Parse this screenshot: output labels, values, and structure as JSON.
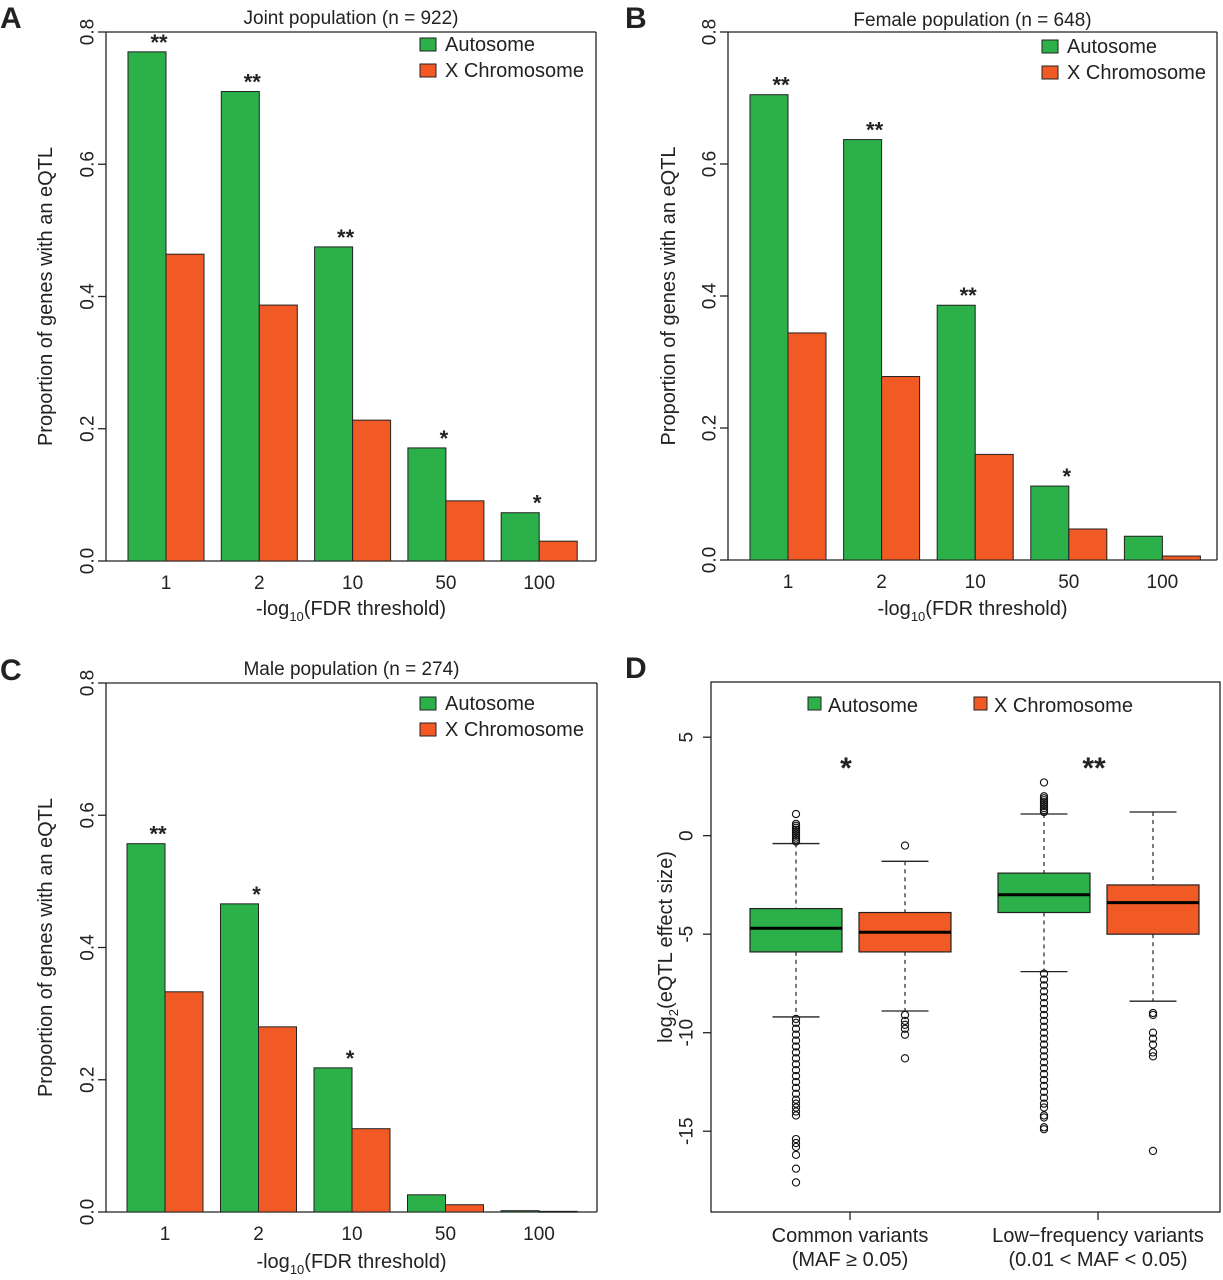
{
  "colors": {
    "autosome": "#2bb04a",
    "x_chromosome": "#f15a24",
    "outline": "#222222",
    "axis": "#222222"
  },
  "chart_data": [
    {
      "panel": "A",
      "type": "bar",
      "title": "Joint population (n = 922)",
      "xlabel": "-log10(FDR threshold)",
      "xlabel_main": "-log",
      "xlabel_sub": "10",
      "xlabel_rest": "(FDR threshold)",
      "ylabel": "Proportion of genes with an eQTL",
      "ylim": [
        0,
        0.8
      ],
      "yticks": [
        "0.0",
        "0.2",
        "0.4",
        "0.6",
        "0.8"
      ],
      "categories": [
        "1",
        "2",
        "10",
        "50",
        "100"
      ],
      "legend": [
        "Autosome",
        "X Chromosome"
      ],
      "legend_position": "top-right",
      "series": [
        {
          "name": "Autosome",
          "values": [
            0.77,
            0.71,
            0.475,
            0.171,
            0.073
          ]
        },
        {
          "name": "X Chromosome",
          "values": [
            0.464,
            0.387,
            0.213,
            0.091,
            0.03
          ]
        }
      ],
      "significance": [
        "**",
        "**",
        "**",
        "*",
        "*"
      ]
    },
    {
      "panel": "B",
      "type": "bar",
      "title": "Female population (n = 648)",
      "xlabel": "-log10(FDR threshold)",
      "xlabel_main": "-log",
      "xlabel_sub": "10",
      "xlabel_rest": "(FDR threshold)",
      "ylabel": "Proportion of genes with an eQTL",
      "ylim": [
        0,
        0.8
      ],
      "yticks": [
        "0.0",
        "0.2",
        "0.4",
        "0.6",
        "0.8"
      ],
      "categories": [
        "1",
        "2",
        "10",
        "50",
        "100"
      ],
      "legend": [
        "Autosome",
        "X Chromosome"
      ],
      "legend_position": "top-right",
      "series": [
        {
          "name": "Autosome",
          "values": [
            0.705,
            0.637,
            0.386,
            0.112,
            0.036
          ]
        },
        {
          "name": "X Chromosome",
          "values": [
            0.344,
            0.278,
            0.16,
            0.047,
            0.006
          ]
        }
      ],
      "significance": [
        "**",
        "**",
        "**",
        "*",
        ""
      ]
    },
    {
      "panel": "C",
      "type": "bar",
      "title": "Male population (n = 274)",
      "xlabel": "-log10(FDR threshold)",
      "xlabel_main": "-log",
      "xlabel_sub": "10",
      "xlabel_rest": "(FDR threshold)",
      "ylabel": "Proportion of genes with an eQTL",
      "ylim": [
        0,
        0.8
      ],
      "yticks": [
        "0.0",
        "0.2",
        "0.4",
        "0.6",
        "0.8"
      ],
      "categories": [
        "1",
        "2",
        "10",
        "50",
        "100"
      ],
      "legend": [
        "Autosome",
        "X Chromosome"
      ],
      "legend_position": "top-right",
      "series": [
        {
          "name": "Autosome",
          "values": [
            0.557,
            0.466,
            0.218,
            0.026,
            0.002
          ]
        },
        {
          "name": "X Chromosome",
          "values": [
            0.333,
            0.28,
            0.126,
            0.011,
            0.001
          ]
        }
      ],
      "significance": [
        "**",
        "*",
        "*",
        "",
        ""
      ]
    },
    {
      "panel": "D",
      "type": "box",
      "title": "",
      "ylabel_main": "log",
      "ylabel_sub": "2",
      "ylabel_rest": "(eQTL effect size)",
      "ylabel": "log2(eQTL effect size)",
      "ylim": [
        -19.1,
        7.8
      ],
      "yticks": [
        5,
        0,
        -5,
        -10,
        -15
      ],
      "legend": [
        "Autosome",
        "X Chromosome"
      ],
      "legend_position": "top",
      "groups": [
        {
          "label_line1": "Common variants",
          "label_line2": "(MAF ≥ 0.05)",
          "significance": "*",
          "boxes": [
            {
              "series": "Autosome",
              "whisker_high": -0.4,
              "q3": -3.7,
              "median": -4.7,
              "q1": -5.9,
              "whisker_low": -9.2,
              "outliers_high": [
                1.1,
                0.6,
                0.5,
                0.4,
                0.3,
                0.2,
                0.1,
                0.0,
                -0.1,
                -0.2,
                -0.3
              ],
              "outliers_low": [
                -9.3,
                -9.5,
                -9.8,
                -10.1,
                -10.4,
                -10.7,
                -11.0,
                -11.3,
                -11.6,
                -11.9,
                -12.2,
                -12.5,
                -12.8,
                -13.1,
                -13.4,
                -13.6,
                -13.8,
                -14.0,
                -14.2,
                -15.4,
                -15.6,
                -15.8,
                -16.2,
                -16.9,
                -17.6
              ]
            },
            {
              "series": "X Chromosome",
              "whisker_high": -1.3,
              "q3": -3.9,
              "median": -4.9,
              "q1": -5.9,
              "whisker_low": -8.9,
              "outliers_high": [
                -0.5
              ],
              "outliers_low": [
                -9.1,
                -9.4,
                -9.6,
                -9.8,
                -10.1,
                -11.3
              ]
            }
          ]
        },
        {
          "label_line1": "Low−frequency variants",
          "label_line2": "(0.01 < MAF < 0.05)",
          "significance": "**",
          "boxes": [
            {
              "series": "Autosome",
              "whisker_high": 1.1,
              "q3": -1.9,
              "median": -3.0,
              "q1": -3.9,
              "whisker_low": -6.9,
              "outliers_high": [
                2.7,
                2.0,
                1.9,
                1.8,
                1.7,
                1.6,
                1.5,
                1.4,
                1.3,
                1.2
              ],
              "outliers_low": [
                -7.0,
                -7.3,
                -7.6,
                -7.9,
                -8.2,
                -8.5,
                -8.8,
                -9.1,
                -9.4,
                -9.7,
                -10.0,
                -10.3,
                -10.6,
                -10.9,
                -11.2,
                -11.5,
                -11.8,
                -12.1,
                -12.4,
                -12.7,
                -13.0,
                -13.3,
                -13.6,
                -13.8,
                -14.2,
                -14.3,
                -14.8,
                -14.9
              ]
            },
            {
              "series": "X Chromosome",
              "whisker_high": 1.2,
              "q3": -2.5,
              "median": -3.4,
              "q1": -5.0,
              "whisker_low": -8.4,
              "outliers_high": [],
              "outliers_low": [
                -9.0,
                -9.1,
                -10.0,
                -10.3,
                -10.6,
                -11.0,
                -11.2,
                -16.0
              ]
            }
          ]
        }
      ]
    }
  ]
}
